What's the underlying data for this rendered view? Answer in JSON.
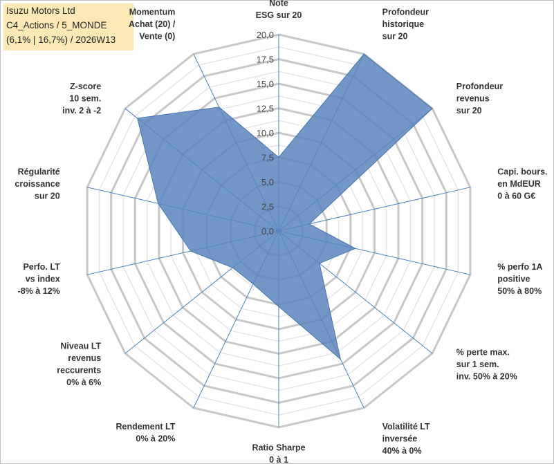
{
  "title_box": {
    "line1": "Isuzu Motors Ltd",
    "line2": "C4_Actions / 5_MONDE",
    "line3": "(6,1% | 16,7%) / 2026W13",
    "background": "#fce9b5"
  },
  "chart_data": {
    "type": "radar",
    "title": "Isuzu Motors Ltd",
    "rmin": 0,
    "rmax": 20,
    "r_ticks": [
      "0,0",
      "2,5",
      "5,0",
      "7,5",
      "10,0",
      "12,5",
      "15,0",
      "17,5",
      "20,0"
    ],
    "axes": [
      {
        "label": [
          "Note",
          "ESG sur 20"
        ],
        "value": 7.5
      },
      {
        "label": [
          "Profondeur",
          "historique",
          "sur 20"
        ],
        "value": 20
      },
      {
        "label": [
          "Profondeur",
          "revenus",
          "sur 20"
        ],
        "value": 20
      },
      {
        "label": [
          "Capi. bours.",
          "en MdEUR",
          "0 à 60 G€"
        ],
        "value": 3.2
      },
      {
        "label": [
          "% perfo 1A",
          "positive",
          "50% à 80%"
        ],
        "value": 8.0
      },
      {
        "label": [
          "% perte max.",
          "sur 1 sem.",
          "inv. 50% à 20%"
        ],
        "value": 5.3
      },
      {
        "label": [
          "Volatilité LT",
          "inversée",
          "40% à 0%"
        ],
        "value": 14.5
      },
      {
        "label": [
          "Ratio Sharpe",
          "0 à 1"
        ],
        "value": 7.7
      },
      {
        "label": [
          "Rendement LT",
          "0% à 20%"
        ],
        "value": 6.0
      },
      {
        "label": [
          "Niveau LT",
          "revenus",
          "reccurents",
          "0% à 6%"
        ],
        "value": 6.0
      },
      {
        "label": [
          "Perfo. LT",
          "vs index",
          "-8% à 12%"
        ],
        "value": 9.2
      },
      {
        "label": [
          "Régularité",
          "croissance",
          "sur 20"
        ],
        "value": 12.6
      },
      {
        "label": [
          "Z-score",
          "10 sem.",
          "inv. 2 à -2"
        ],
        "value": 18.4
      },
      {
        "label": [
          "Momentum",
          "Achat (20) /",
          "Vente (0)"
        ],
        "value": 14.0
      }
    ],
    "series": [
      {
        "name": "Isuzu Motors Ltd",
        "fill": "#5b86bd",
        "stroke": "#4a76b0"
      }
    ],
    "grid_color": "#c8c8c8",
    "spoke_color": "#4f81bd"
  }
}
